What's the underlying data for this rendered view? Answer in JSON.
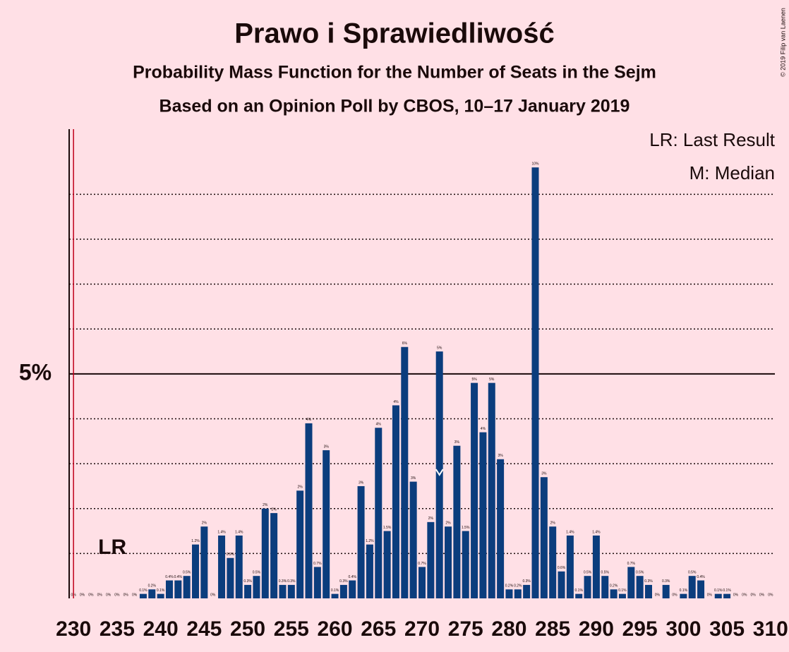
{
  "chart_data": {
    "type": "bar",
    "title": "Prawo i Sprawiedliwość",
    "subtitle": "Probability Mass Function for the Number of Seats in the Sejm",
    "subtitle2": "Based on an Opinion Poll by CBOS, 10–17 January 2019",
    "copyright": "© 2019 Filip van Laenen",
    "legend": [
      "LR: Last Result",
      "M: Median"
    ],
    "last_result": 230,
    "last_result_label": "LR",
    "median": 272,
    "color": "#0b3d7d",
    "x": [
      230,
      231,
      232,
      233,
      234,
      235,
      236,
      237,
      238,
      239,
      240,
      241,
      242,
      243,
      244,
      245,
      246,
      247,
      248,
      249,
      250,
      251,
      252,
      253,
      254,
      255,
      256,
      257,
      258,
      259,
      260,
      261,
      262,
      263,
      264,
      265,
      266,
      267,
      268,
      269,
      270,
      271,
      272,
      273,
      274,
      275,
      276,
      277,
      278,
      279,
      280,
      281,
      282,
      283,
      284,
      285,
      286,
      287,
      288,
      289,
      290,
      291,
      292,
      293,
      294,
      295,
      296,
      297,
      298,
      299,
      300,
      301,
      302,
      303,
      304,
      305,
      306,
      307,
      308,
      309,
      310
    ],
    "values": [
      0,
      0,
      0,
      0,
      0,
      0,
      0,
      0,
      0.1,
      0.2,
      0.1,
      0.4,
      0.4,
      0.5,
      1.2,
      1.6,
      0,
      1.4,
      0.9,
      1.4,
      0.3,
      0.5,
      2.0,
      1.9,
      0.3,
      0.3,
      2.4,
      3.9,
      0.7,
      3.3,
      0.1,
      0.3,
      0.4,
      2.5,
      1.2,
      3.8,
      1.5,
      4.3,
      5.6,
      2.6,
      0.7,
      1.7,
      5.5,
      1.6,
      3.4,
      1.5,
      4.8,
      3.7,
      4.8,
      3.1,
      0.2,
      0.2,
      0.3,
      9.6,
      2.7,
      1.6,
      0.6,
      1.4,
      0.1,
      0.5,
      1.4,
      0.5,
      0.2,
      0.1,
      0.7,
      0.5,
      0.3,
      0,
      0.3,
      0,
      0.1,
      0.5,
      0.4,
      0,
      0.1,
      0.1,
      0,
      0,
      0,
      0,
      0
    ],
    "value_labels": [
      "0%",
      "0%",
      "0%",
      "0%",
      "0%",
      "0%",
      "0%",
      "0%",
      "0.1%",
      "0.2%",
      "0.1%",
      "0.4%",
      "0.4%",
      "0.5%",
      "1.2%",
      "2%",
      "0%",
      "1.4%",
      "0.9%",
      "1.4%",
      "0.3%",
      "0.5%",
      "2%",
      "2%",
      "0.3%",
      "0.3%",
      "2%",
      "4%",
      "0.7%",
      "3%",
      "0.1%",
      "0.3%",
      "0.4%",
      "3%",
      "1.2%",
      "4%",
      "1.5%",
      "4%",
      "6%",
      "3%",
      "0.7%",
      "2%",
      "5%",
      "2%",
      "3%",
      "1.5%",
      "5%",
      "4%",
      "5%",
      "3%",
      "0.2%",
      "0.2%",
      "0.3%",
      "10%",
      "3%",
      "2%",
      "0.6%",
      "1.4%",
      "0.1%",
      "0.5%",
      "1.4%",
      "0.5%",
      "0.2%",
      "0.1%",
      "0.7%",
      "0.5%",
      "0.3%",
      "0%",
      "0.3%",
      "0%",
      "0.1%",
      "0.5%",
      "0.4%",
      "0%",
      "0.1%",
      "0.1%",
      "0%",
      "0%",
      "0%",
      "0%",
      "0%"
    ],
    "xlim": [
      229.5,
      310.5
    ],
    "xticks": [
      230,
      235,
      240,
      245,
      250,
      255,
      260,
      265,
      270,
      275,
      280,
      285,
      290,
      295,
      300,
      305,
      310
    ],
    "ylim": [
      0,
      10.5
    ],
    "yticks": [
      {
        "value": 5,
        "label": "5%"
      }
    ],
    "minor_yticks": [
      1,
      2,
      3,
      4,
      6,
      7,
      8,
      9
    ]
  }
}
